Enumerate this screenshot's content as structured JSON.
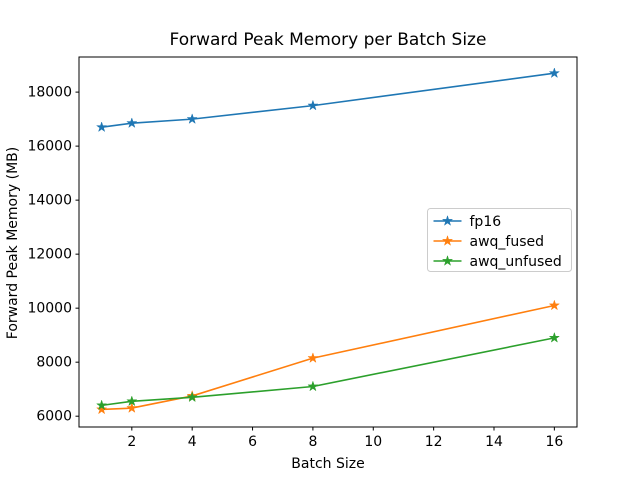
{
  "chart_data": {
    "type": "line",
    "title": "Forward Peak Memory per Batch Size",
    "xlabel": "Batch Size",
    "ylabel": "Forward Peak Memory (MB)",
    "x": [
      1,
      2,
      4,
      8,
      16
    ],
    "series": [
      {
        "name": "fp16",
        "color": "#1f77b4",
        "values": [
          16700,
          16850,
          17000,
          17500,
          18700
        ]
      },
      {
        "name": "awq_fused",
        "color": "#ff7f0e",
        "values": [
          6250,
          6300,
          6750,
          8150,
          10100
        ]
      },
      {
        "name": "awq_unfused",
        "color": "#2ca02c",
        "values": [
          6400,
          6550,
          6700,
          7100,
          8900
        ]
      }
    ],
    "marker": "star",
    "xticks": [
      2,
      4,
      6,
      8,
      10,
      12,
      14,
      16
    ],
    "yticks": [
      6000,
      8000,
      10000,
      12000,
      14000,
      16000,
      18000
    ],
    "xlim": [
      0.25,
      16.75
    ],
    "ylim": [
      5600,
      19300
    ],
    "grid": false,
    "legend_position": "center-right",
    "colors": {
      "spine": "#000000",
      "legend_border": "#cccccc",
      "background": "#ffffff"
    }
  }
}
